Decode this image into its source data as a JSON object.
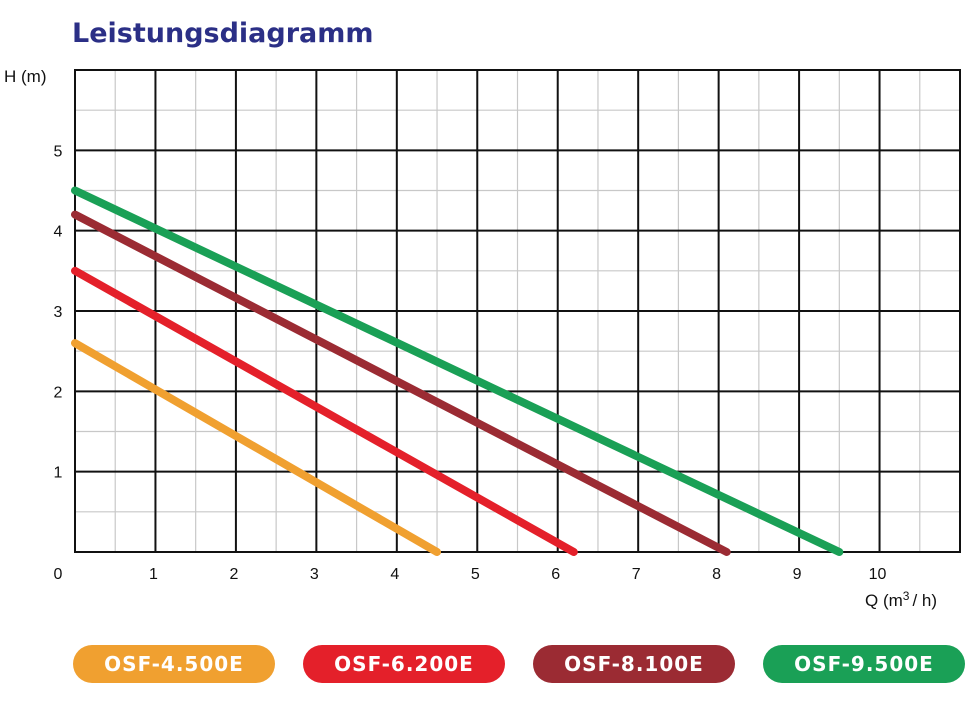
{
  "chart_data": {
    "type": "line",
    "title": "Leistungsdiagramm",
    "ylabel": "H (m)",
    "xlabel_main": "Q (m",
    "xlabel_sup": "3",
    "xlabel_tail": "/ h)",
    "xlim": [
      0,
      11
    ],
    "ylim": [
      0,
      6
    ],
    "x_ticks": [
      "0",
      "1",
      "2",
      "3",
      "4",
      "5",
      "6",
      "7",
      "8",
      "9",
      "10"
    ],
    "y_ticks": [
      "1",
      "2",
      "3",
      "4",
      "5"
    ],
    "grid": true,
    "legend_position": "bottom",
    "series": [
      {
        "name": "OSF-4.500E",
        "color": "#f0a030",
        "x": [
          0,
          4.5
        ],
        "y": [
          2.6,
          0
        ]
      },
      {
        "name": "OSF-6.200E",
        "color": "#e4202a",
        "x": [
          0,
          6.2
        ],
        "y": [
          3.5,
          0
        ]
      },
      {
        "name": "OSF-8.100E",
        "color": "#9b2b33",
        "x": [
          0,
          8.1
        ],
        "y": [
          4.2,
          0
        ]
      },
      {
        "name": "OSF-9.500E",
        "color": "#1aa056",
        "x": [
          0,
          9.5
        ],
        "y": [
          4.5,
          0
        ]
      }
    ]
  }
}
